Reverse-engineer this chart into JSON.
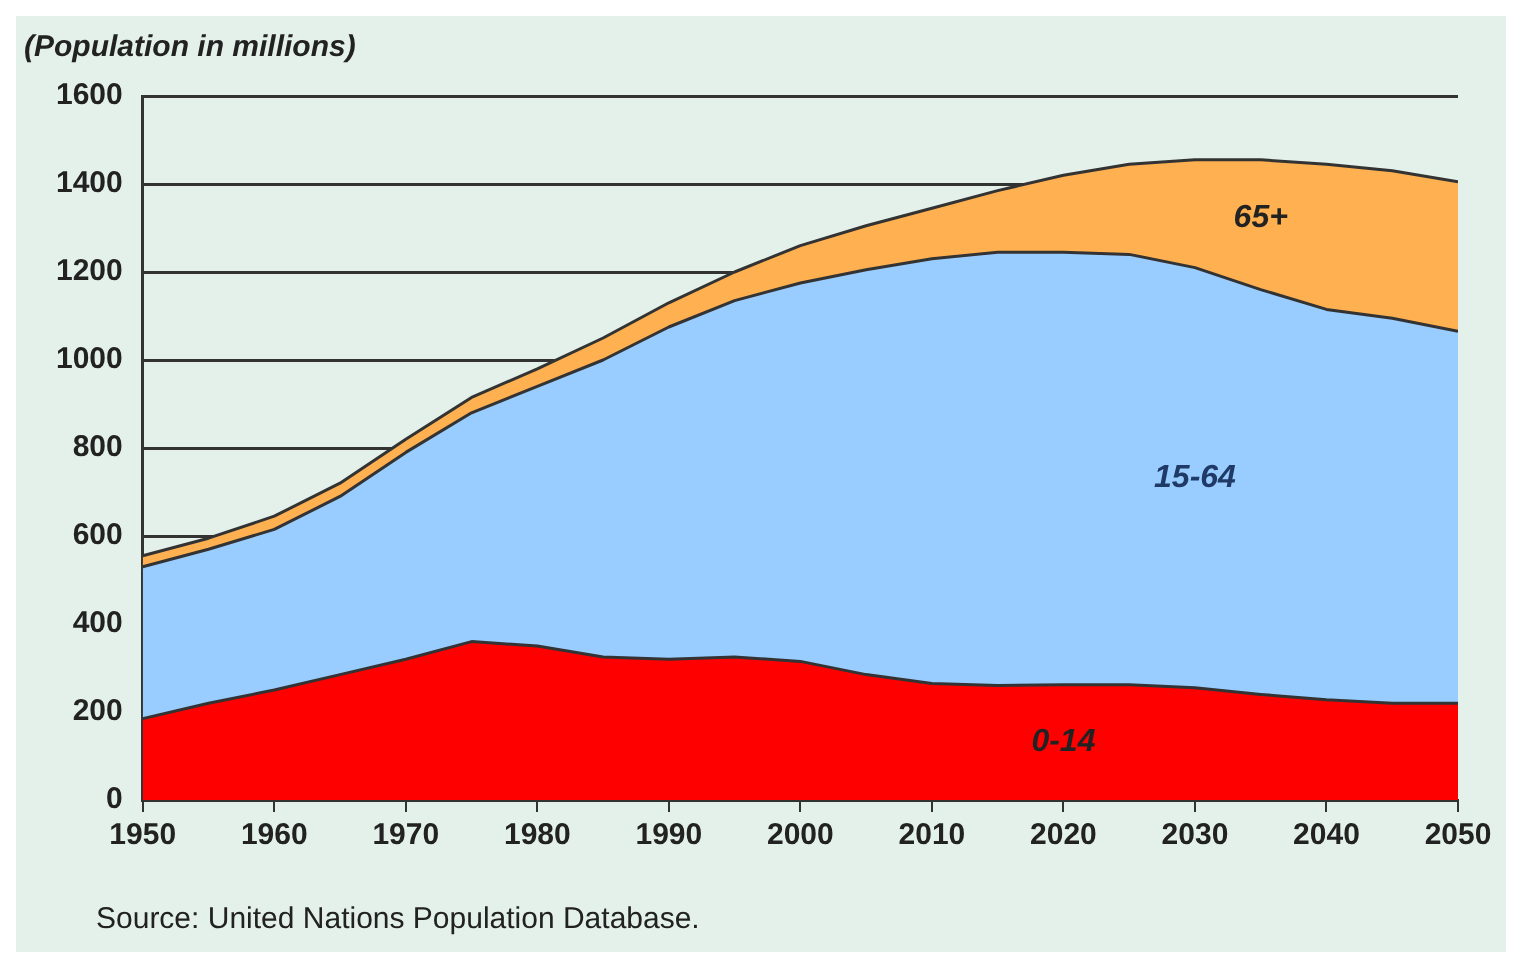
{
  "chart_data": {
    "type": "area",
    "ylabel": "(Population in millions)",
    "annotations": [
      "Source: United Nations Population Database."
    ],
    "x": [
      1950,
      1955,
      1960,
      1965,
      1970,
      1975,
      1980,
      1985,
      1990,
      1995,
      2000,
      2005,
      2010,
      2015,
      2020,
      2025,
      2030,
      2035,
      2040,
      2045,
      2050
    ],
    "stacked": true,
    "series": [
      {
        "name": "0-14",
        "color": "#ff0000",
        "values": [
          185,
          220,
          250,
          285,
          320,
          360,
          350,
          325,
          320,
          325,
          315,
          285,
          265,
          260,
          262,
          262,
          255,
          240,
          228,
          220,
          220
        ]
      },
      {
        "name": "15-64",
        "color": "#99ccff",
        "values": [
          345,
          350,
          365,
          405,
          470,
          520,
          590,
          675,
          755,
          810,
          860,
          920,
          965,
          985,
          983,
          978,
          955,
          920,
          887,
          875,
          845
        ]
      },
      {
        "name": "65+",
        "color": "#ffb050",
        "values": [
          25,
          25,
          30,
          30,
          30,
          35,
          40,
          50,
          55,
          65,
          85,
          100,
          115,
          140,
          175,
          205,
          245,
          295,
          330,
          335,
          340
        ]
      }
    ],
    "xlim": [
      1950,
      2050
    ],
    "xticks": [
      1950,
      1960,
      1970,
      1980,
      1990,
      2000,
      2010,
      2020,
      2030,
      2040,
      2050
    ],
    "ylim": [
      0,
      1600
    ],
    "yticks": [
      0,
      200,
      400,
      600,
      800,
      1000,
      1200,
      1400,
      1600
    ],
    "grid": "y",
    "legend": false
  }
}
